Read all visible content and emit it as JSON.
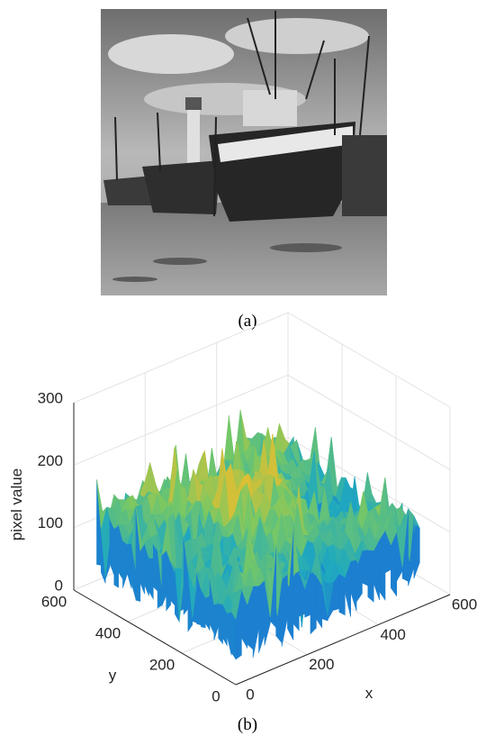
{
  "panel_a": {
    "caption": "(a)"
  },
  "panel_b": {
    "caption": "(b)",
    "plot": {
      "zlabel": "pixel value",
      "xlabel": "x",
      "ylabel": "y",
      "xlim": [
        0,
        600
      ],
      "ylim": [
        0,
        600
      ],
      "zlim": [
        0,
        300
      ],
      "xticks": [
        0,
        200,
        400,
        600
      ],
      "yticks": [
        0,
        200,
        400,
        600
      ],
      "zticks": [
        0,
        100,
        200,
        300
      ]
    }
  }
}
